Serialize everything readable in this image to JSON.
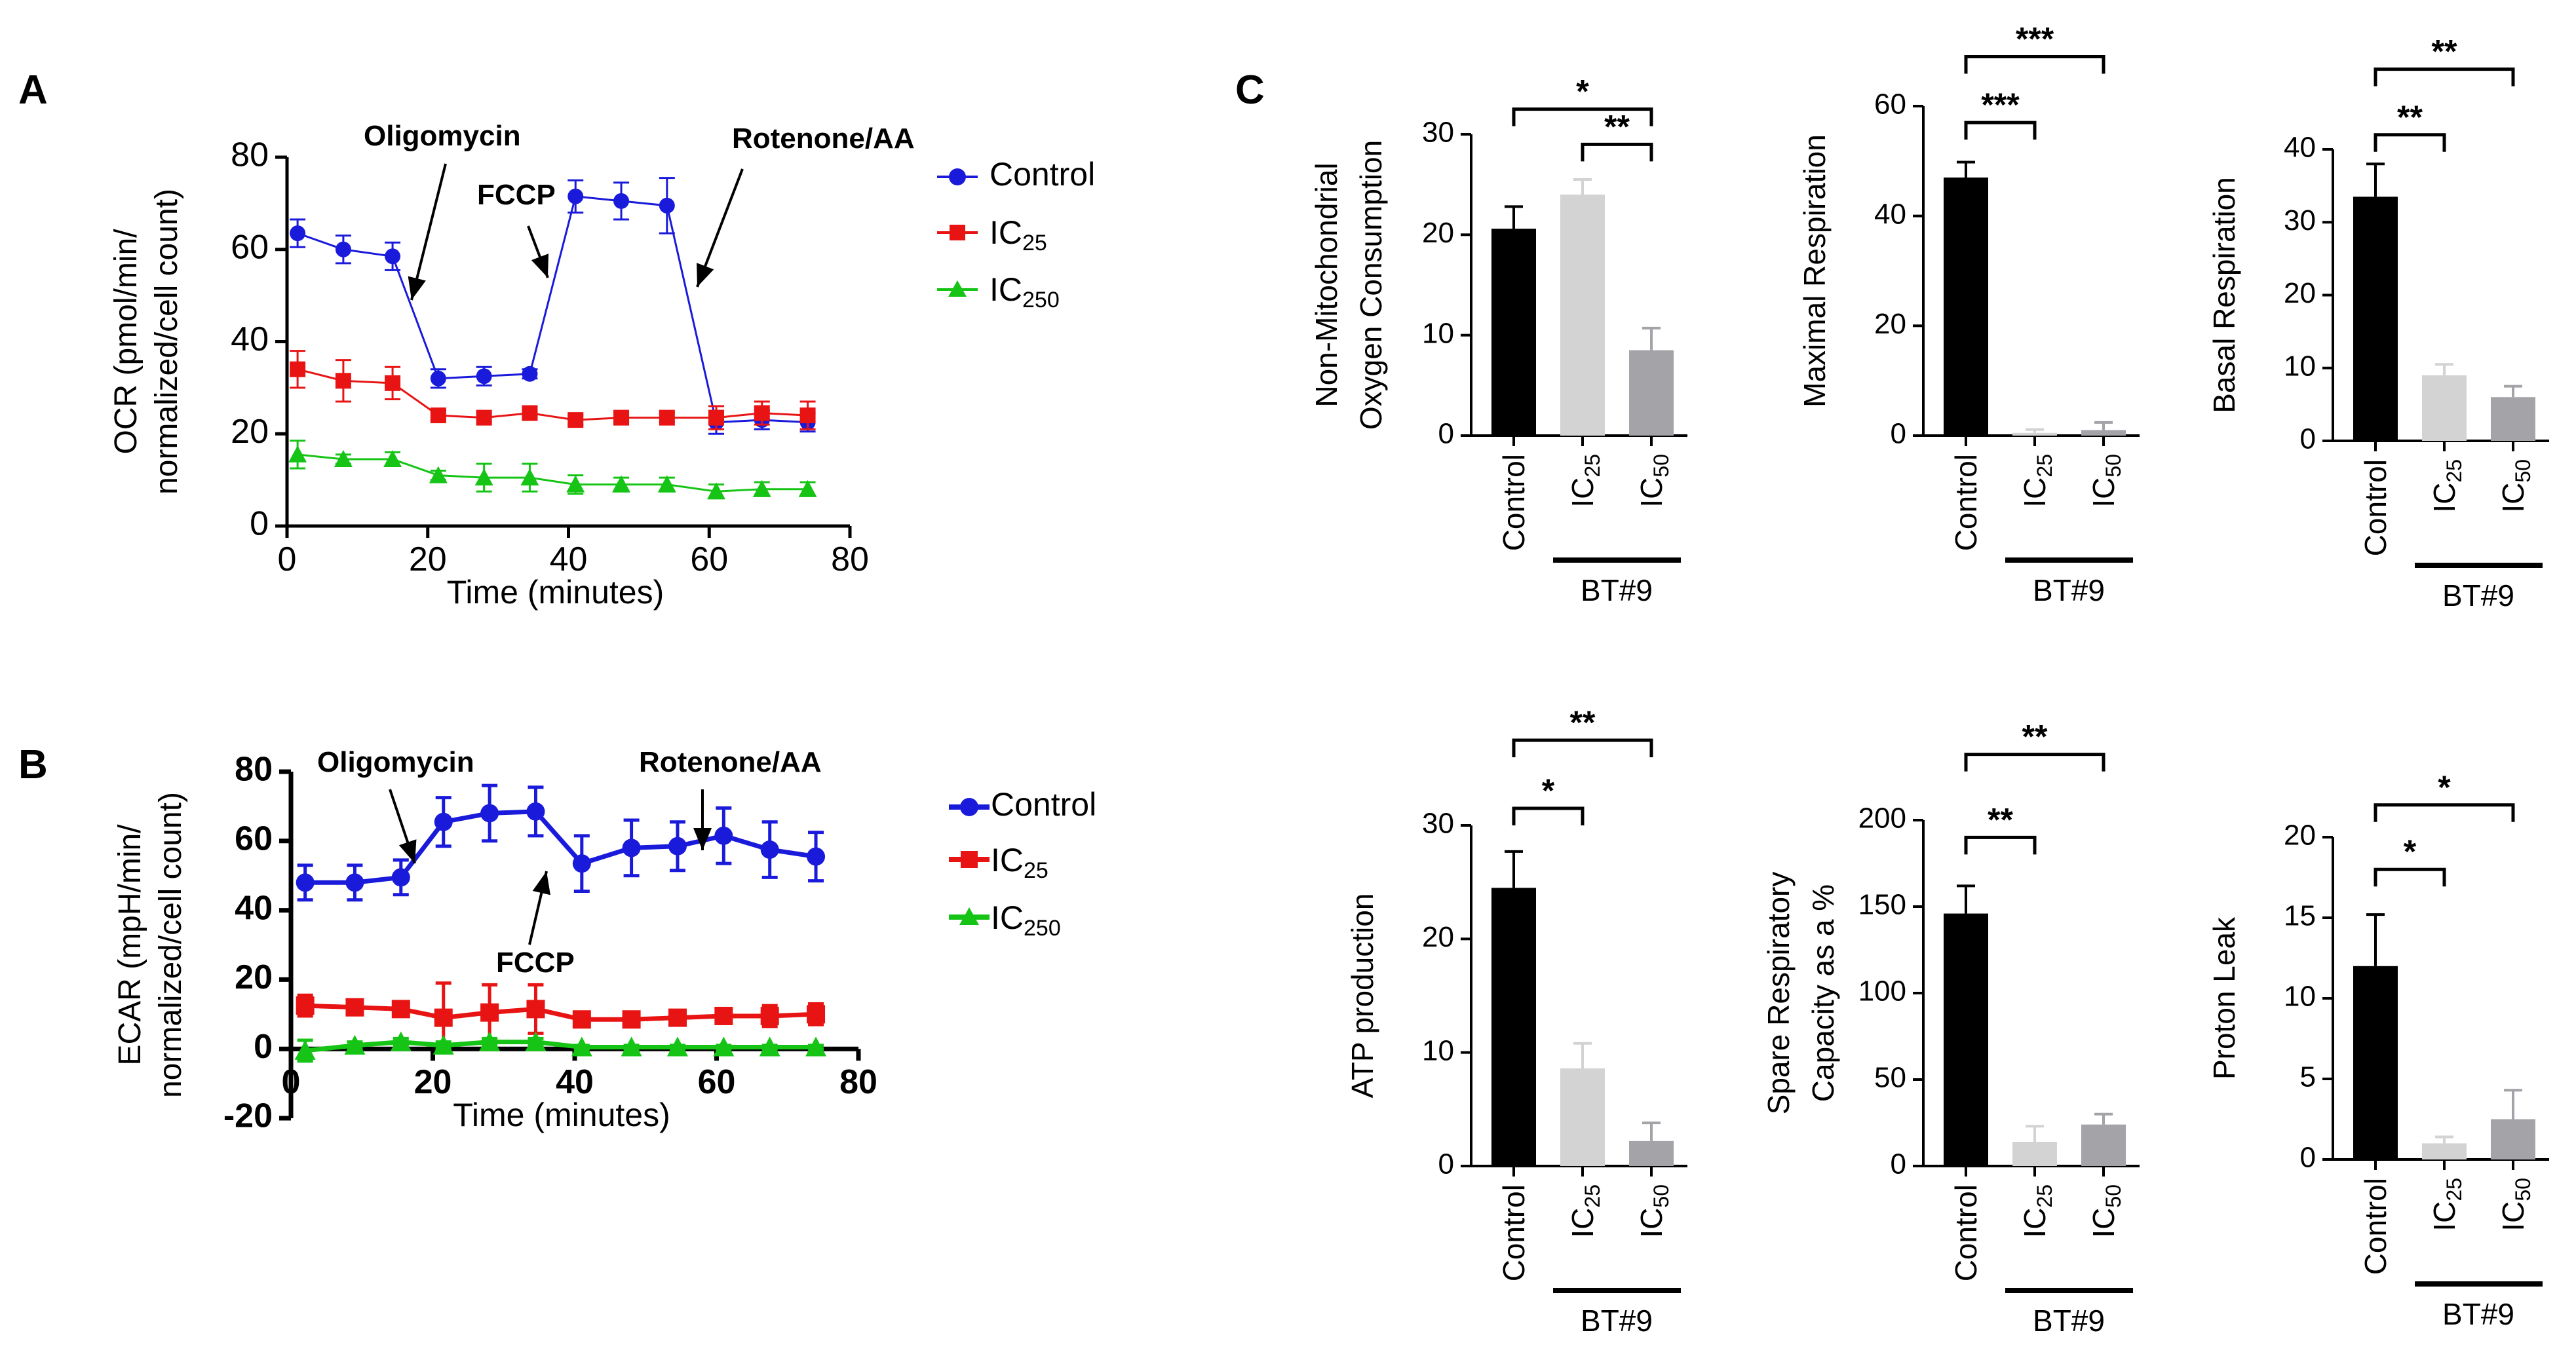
{
  "panel_labels": {
    "a": "A",
    "b": "B",
    "c": "C"
  },
  "legend": {
    "control": "Control",
    "ic25": "IC",
    "ic25_sub": "25",
    "ic250": "IC",
    "ic250_sub": "250"
  },
  "colors": {
    "control": "#1a1adb",
    "ic25": "#e81414",
    "ic250": "#16c416",
    "bar_control": "#000000",
    "bar_ic25": "#d3d3d3",
    "bar_ic50": "#a3a3a8"
  },
  "chart_data": [
    {
      "id": "ocr",
      "type": "line",
      "title": "",
      "xlabel": "Time (minutes)",
      "ylabel": "OCR (pmol/min/ normalized/cell count)",
      "ylabel_lines": [
        "OCR (pmol/min/",
        "normalized/cell count)"
      ],
      "xlim": [
        0,
        80
      ],
      "ylim": [
        0,
        80
      ],
      "x_ticks": [
        0,
        20,
        40,
        60,
        80
      ],
      "y_ticks": [
        0,
        20,
        40,
        60,
        80
      ],
      "x": [
        1.5,
        8,
        15,
        21.5,
        28,
        34.5,
        41,
        47.5,
        54,
        61,
        67.5,
        74
      ],
      "annotations": [
        {
          "text": "Oligomycin",
          "x": 18,
          "y": 50
        },
        {
          "text": "FCCP",
          "x": 37,
          "y": 52
        },
        {
          "text": "Rotenone/AA",
          "x": 58,
          "y": 52
        }
      ],
      "series": [
        {
          "name": "Control",
          "values": [
            63.5,
            60,
            58.5,
            32,
            32.5,
            33,
            71.5,
            70.5,
            69.5,
            22.5,
            23,
            22.5
          ],
          "errors": [
            3,
            3,
            3,
            2,
            2,
            1,
            3.5,
            4,
            6,
            2.5,
            2,
            2
          ]
        },
        {
          "name": "IC25",
          "values": [
            34,
            31.5,
            31,
            24,
            23.5,
            24.5,
            23,
            23.5,
            23.5,
            23.5,
            24.5,
            24
          ],
          "errors": [
            4,
            4.5,
            3.5,
            1,
            1,
            1,
            1,
            1,
            1,
            2.5,
            2.5,
            3
          ]
        },
        {
          "name": "IC250",
          "values": [
            15.5,
            14.5,
            14.5,
            11,
            10.5,
            10.5,
            9,
            9,
            9,
            7.5,
            8,
            8
          ],
          "errors": [
            3,
            1,
            1.5,
            1,
            3,
            3,
            2,
            1.5,
            1.5,
            1.5,
            1.5,
            1.5
          ]
        }
      ]
    },
    {
      "id": "ecar",
      "type": "line",
      "title": "",
      "xlabel": "Time (minutes)",
      "ylabel": "ECAR (mpH/min/ normalized/cell count)",
      "ylabel_lines": [
        "ECAR (mpH/min/",
        "normalized/cell count)"
      ],
      "xlim": [
        0,
        80
      ],
      "ylim": [
        -20,
        80
      ],
      "x_ticks": [
        0,
        20,
        40,
        60,
        80
      ],
      "y_ticks": [
        -20,
        0,
        20,
        40,
        60,
        80
      ],
      "x": [
        2,
        9,
        15.5,
        21.5,
        28,
        34.5,
        41,
        48,
        54.5,
        61,
        67.5,
        74
      ],
      "annotations": [
        {
          "text": "Oligomycin",
          "x": 18,
          "y": 80
        },
        {
          "text": "FCCP",
          "x": 35,
          "y": 33
        },
        {
          "text": "Rotenone/AA",
          "x": 59,
          "y": 80
        }
      ],
      "series": [
        {
          "name": "Control",
          "values": [
            48,
            48,
            49.5,
            65.5,
            68,
            68.5,
            53.5,
            58,
            58.5,
            61.5,
            57.5,
            55.5
          ],
          "errors": [
            5,
            5,
            5,
            7,
            8,
            7,
            8,
            8,
            7,
            8,
            8,
            7
          ]
        },
        {
          "name": "IC25",
          "values": [
            12.5,
            12,
            11.5,
            9,
            10.5,
            11.5,
            8.5,
            8.5,
            9,
            9.5,
            9.5,
            10
          ],
          "errors": [
            3,
            2,
            2,
            10,
            8,
            7,
            1,
            1,
            1,
            2,
            3,
            3
          ]
        },
        {
          "name": "IC250",
          "values": [
            -0.5,
            1,
            2,
            1,
            2,
            2,
            0.5,
            0.5,
            0.5,
            0.5,
            0.5,
            0.5
          ],
          "errors": [
            3,
            1,
            1,
            1,
            1,
            1,
            0.5,
            0.5,
            0.5,
            0.5,
            0.5,
            0.5
          ]
        }
      ]
    },
    {
      "id": "nonmito",
      "type": "bar",
      "ylabel_lines": [
        "Non-Mitochondrial",
        "Oxygen Consumption"
      ],
      "categories": [
        "Control",
        "IC",
        "IC"
      ],
      "category_subs": [
        "",
        "25",
        "50"
      ],
      "group_label": "BT#9",
      "values": [
        20.6,
        24,
        8.5
      ],
      "errors": [
        2.2,
        1.5,
        2.2
      ],
      "ylim": [
        0,
        30
      ],
      "y_ticks": [
        0,
        10,
        20,
        30
      ],
      "significance": [
        {
          "from": 0,
          "to": 2,
          "label": "*",
          "level": 32.5
        },
        {
          "from": 1,
          "to": 2,
          "label": "**",
          "level": 29
        }
      ]
    },
    {
      "id": "maximal",
      "type": "bar",
      "ylabel_lines": [
        "Maximal Respiration"
      ],
      "categories": [
        "Control",
        "IC",
        "IC"
      ],
      "category_subs": [
        "",
        "25",
        "50"
      ],
      "group_label": "BT#9",
      "values": [
        47,
        0.5,
        1
      ],
      "errors": [
        2.8,
        0.6,
        1.4
      ],
      "ylim": [
        0,
        60
      ],
      "y_ticks": [
        0,
        20,
        40,
        60
      ],
      "significance": [
        {
          "from": 0,
          "to": 2,
          "label": "***",
          "level": 69
        },
        {
          "from": 0,
          "to": 1,
          "label": "***",
          "level": 57
        }
      ]
    },
    {
      "id": "basal",
      "type": "bar",
      "ylabel_lines": [
        "Basal Respiration"
      ],
      "categories": [
        "Control",
        "IC",
        "IC"
      ],
      "category_subs": [
        "",
        "25",
        "50"
      ],
      "group_label": "BT#9",
      "values": [
        33.5,
        9,
        6
      ],
      "errors": [
        4.5,
        1.5,
        1.5
      ],
      "ylim": [
        0,
        40
      ],
      "y_ticks": [
        0,
        10,
        20,
        30,
        40
      ],
      "significance": [
        {
          "from": 0,
          "to": 2,
          "label": "**",
          "level": 51
        },
        {
          "from": 0,
          "to": 1,
          "label": "**",
          "level": 42
        }
      ]
    },
    {
      "id": "atp",
      "type": "bar",
      "ylabel_lines": [
        "ATP production"
      ],
      "categories": [
        "Control",
        "IC",
        "IC"
      ],
      "category_subs": [
        "",
        "25",
        "50"
      ],
      "group_label": "BT#9",
      "values": [
        24.5,
        8.6,
        2.2
      ],
      "errors": [
        3.2,
        2.2,
        1.6
      ],
      "ylim": [
        0,
        30
      ],
      "y_ticks": [
        0,
        10,
        20,
        30
      ],
      "significance": [
        {
          "from": 0,
          "to": 2,
          "label": "**",
          "level": 37.5
        },
        {
          "from": 0,
          "to": 1,
          "label": "*",
          "level": 31.5
        }
      ]
    },
    {
      "id": "spare",
      "type": "bar",
      "ylabel_lines": [
        "Spare Respiratory",
        "Capacity as a %"
      ],
      "categories": [
        "Control",
        "IC",
        "IC"
      ],
      "category_subs": [
        "",
        "25",
        "50"
      ],
      "group_label": "BT#9",
      "values": [
        146,
        14,
        24
      ],
      "errors": [
        16,
        9,
        6
      ],
      "ylim": [
        0,
        200
      ],
      "y_ticks": [
        0,
        50,
        100,
        150,
        200
      ],
      "significance": [
        {
          "from": 0,
          "to": 2,
          "label": "**",
          "level": 238
        },
        {
          "from": 0,
          "to": 1,
          "label": "**",
          "level": 190
        }
      ]
    },
    {
      "id": "proton",
      "type": "bar",
      "ylabel_lines": [
        "Proton Leak"
      ],
      "categories": [
        "Control",
        "IC",
        "IC"
      ],
      "category_subs": [
        "",
        "25",
        "50"
      ],
      "group_label": "BT#9",
      "values": [
        12,
        1,
        2.5
      ],
      "errors": [
        3.2,
        0.4,
        1.8
      ],
      "ylim": [
        0,
        20
      ],
      "y_ticks": [
        0,
        5,
        10,
        15,
        20
      ],
      "significance": [
        {
          "from": 0,
          "to": 2,
          "label": "*",
          "level": 22
        },
        {
          "from": 0,
          "to": 1,
          "label": "*",
          "level": 18
        }
      ]
    }
  ]
}
